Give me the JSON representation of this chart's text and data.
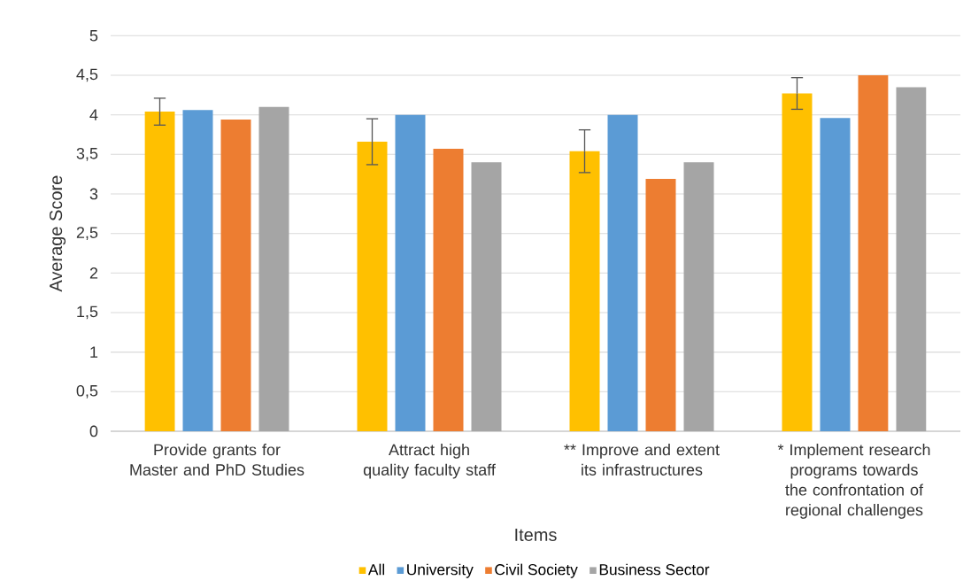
{
  "chart_data": {
    "type": "bar",
    "categories": [
      "Provide grants for Master and PhD Studies",
      "Attract high quality faculty staff",
      "** Improve and extent its infrastructures",
      "* Implement research programs towards the confrontation of regional challenges"
    ],
    "series": [
      {
        "name": "All",
        "color": "#ffc000",
        "values": [
          4.04,
          3.66,
          3.54,
          4.27
        ],
        "errors": [
          0.17,
          0.29,
          0.27,
          0.2
        ]
      },
      {
        "name": "University",
        "color": "#5b9bd5",
        "values": [
          4.06,
          4.0,
          4.0,
          3.96
        ]
      },
      {
        "name": "Civil Society",
        "color": "#ed7d31",
        "values": [
          3.94,
          3.57,
          3.19,
          4.5
        ]
      },
      {
        "name": "Business Sector",
        "color": "#a5a5a5",
        "values": [
          4.1,
          3.4,
          3.4,
          4.35
        ]
      }
    ],
    "xlabel": "Items",
    "ylabel": "Average Score",
    "ylim": [
      0,
      5
    ],
    "yticks": [
      0,
      {
        "value": 0.5,
        "label": "0,5"
      },
      1,
      {
        "value": 1.5,
        "label": "1,5"
      },
      2,
      {
        "value": 2.5,
        "label": "2,5"
      },
      3,
      {
        "value": 3.5,
        "label": "3,5"
      },
      4,
      {
        "value": 4.5,
        "label": "4,5"
      },
      5
    ],
    "grid": "y",
    "legend": "bottom"
  }
}
